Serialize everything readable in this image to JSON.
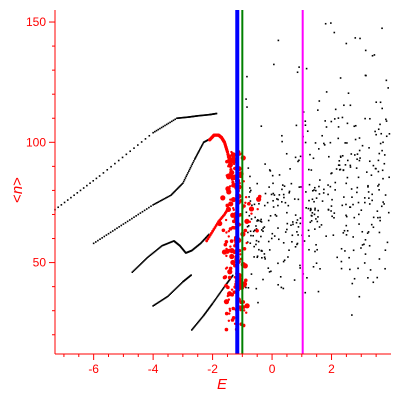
{
  "chart_data": {
    "type": "scatter",
    "title": "",
    "xlabel": "E",
    "ylabel_parts": [
      "<",
      "n",
      ">"
    ],
    "xlim": [
      -7.3,
      4.0
    ],
    "ylim": [
      12,
      155
    ],
    "x_ticks": [
      -6,
      -4,
      -2,
      0,
      2
    ],
    "x_tick_labels": [
      "-6",
      "-4",
      "-2",
      "0",
      "2"
    ],
    "y_ticks": [
      50,
      100,
      150
    ],
    "y_tick_labels": [
      "50",
      "100",
      "150"
    ],
    "grid": false,
    "colors": {
      "axis": "#ff0000",
      "black_series": "#000000",
      "red_series": "#ff0000",
      "line_blue": "#0000ff",
      "line_green": "#008000",
      "line_magenta": "#ff00ff"
    },
    "vertical_lines": [
      {
        "x": -1.17,
        "color": "#0000ff"
      },
      {
        "x": -1.0,
        "color": "#008000"
      },
      {
        "x": 1.03,
        "color": "#ff00ff"
      }
    ],
    "black_curves": [
      {
        "x": [
          -7.3,
          -5.8,
          -4.0,
          -3.2,
          -2.8,
          -2.5,
          -2.1,
          -1.85
        ],
        "y": [
          72,
          86,
          104,
          110,
          110.5,
          111,
          111.5,
          112
        ]
      },
      {
        "x": [
          -6.0,
          -5.0,
          -4.0,
          -3.4,
          -3.0,
          -2.6,
          -2.3,
          -2.0
        ],
        "y": [
          58,
          66,
          74,
          78,
          83,
          93,
          100,
          102
        ]
      },
      {
        "x": [
          -4.7,
          -4.2,
          -3.7,
          -3.3,
          -3.1,
          -2.9,
          -2.7,
          -2.4,
          -2.1
        ],
        "y": [
          46,
          52,
          57,
          59,
          57,
          54,
          55,
          58,
          62
        ]
      },
      {
        "x": [
          -4.0,
          -3.5,
          -3.0,
          -2.7
        ],
        "y": [
          32,
          36,
          42,
          45
        ]
      },
      {
        "x": [
          -2.7,
          -2.3,
          -2.0,
          -1.6,
          -1.3
        ],
        "y": [
          22,
          28,
          33,
          40,
          45
        ]
      }
    ],
    "red_arc": {
      "x": [
        -2.1,
        -1.95,
        -1.8,
        -1.7,
        -1.6,
        -1.5,
        -1.4,
        -1.3
      ],
      "y": [
        101,
        103,
        103,
        102,
        100,
        96,
        90,
        82
      ]
    },
    "red_branch": {
      "x": [
        -2.2,
        -2.0,
        -1.8,
        -1.6,
        -1.45
      ],
      "y": [
        59,
        63,
        67,
        70,
        73
      ]
    },
    "scatter_region": {
      "x": [
        -0.9,
        4.0
      ],
      "y": [
        15,
        155
      ],
      "point_count": 420
    }
  }
}
